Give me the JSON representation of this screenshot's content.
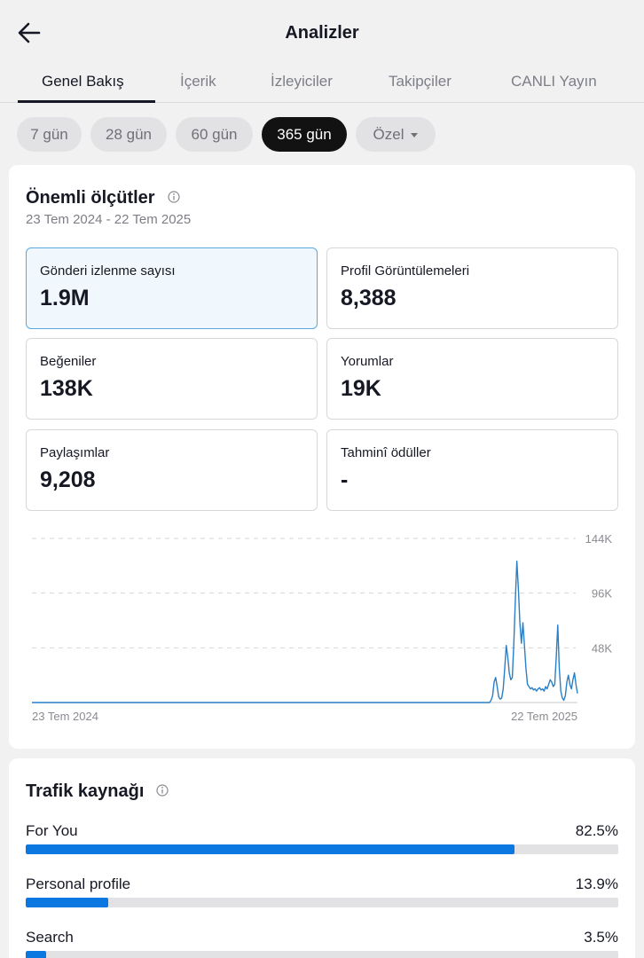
{
  "header": {
    "title": "Analizler",
    "back_icon": "arrow-left-icon"
  },
  "tabs": [
    {
      "label": "Genel Bakış",
      "active": true
    },
    {
      "label": "İçerik",
      "active": false
    },
    {
      "label": "İzleyiciler",
      "active": false
    },
    {
      "label": "Takipçiler",
      "active": false
    },
    {
      "label": "CANLI Yayın",
      "active": false
    }
  ],
  "ranges": [
    {
      "label": "7 gün",
      "active": false
    },
    {
      "label": "28 gün",
      "active": false
    },
    {
      "label": "60 gün",
      "active": false
    },
    {
      "label": "365 gün",
      "active": true
    },
    {
      "label": "Özel",
      "active": false,
      "has_dropdown": true
    }
  ],
  "key_metrics": {
    "title": "Önemli ölçütler",
    "date_range": "23 Tem 2024 - 22 Tem 2025",
    "items": [
      {
        "label": "Gönderi izlenme sayısı",
        "value": "1.9M",
        "selected": true
      },
      {
        "label": "Profil Görüntülemeleri",
        "value": "8,388",
        "selected": false
      },
      {
        "label": "Beğeniler",
        "value": "138K",
        "selected": false
      },
      {
        "label": "Yorumlar",
        "value": "19K",
        "selected": false
      },
      {
        "label": "Paylaşımlar",
        "value": "9,208",
        "selected": false
      },
      {
        "label": "Tahminî ödüller",
        "value": "-",
        "selected": false
      }
    ]
  },
  "chart_data": {
    "type": "line",
    "title": "",
    "xlabel": "",
    "ylabel": "",
    "x_tick_labels": [
      "23 Tem 2024",
      "22 Tem 2025"
    ],
    "y_ticks": [
      {
        "value": 48000,
        "label": "48K"
      },
      {
        "value": 96000,
        "label": "96K"
      },
      {
        "value": 144000,
        "label": "144K"
      }
    ],
    "ylim": [
      0,
      144000
    ],
    "grid": "horizontal-dashed",
    "color": "#2a7fc6",
    "series": [
      {
        "values": [
          0,
          0,
          0,
          0,
          0,
          0,
          0,
          0,
          0,
          0,
          0,
          0,
          0,
          0,
          0,
          0,
          0,
          0,
          0,
          0,
          0,
          0,
          0,
          0,
          0,
          0,
          0,
          0,
          0,
          0,
          0,
          0,
          0,
          0,
          0,
          0,
          0,
          0,
          0,
          0,
          0,
          0,
          0,
          0,
          0,
          0,
          0,
          0,
          0,
          0,
          0,
          0,
          0,
          0,
          0,
          0,
          0,
          0,
          0,
          0,
          0,
          0,
          0,
          0,
          0,
          0,
          0,
          0,
          0,
          0,
          0,
          0,
          0,
          0,
          0,
          0,
          0,
          0,
          0,
          0,
          0,
          0,
          0,
          0,
          0,
          0,
          0,
          0,
          0,
          0,
          0,
          0,
          0,
          0,
          0,
          0,
          0,
          0,
          0,
          0,
          0,
          0,
          0,
          0,
          0,
          0,
          0,
          0,
          0,
          0,
          0,
          0,
          0,
          0,
          0,
          0,
          0,
          0,
          0,
          0,
          0,
          0,
          0,
          0,
          0,
          0,
          0,
          0,
          0,
          0,
          0,
          0,
          0,
          0,
          0,
          0,
          0,
          0,
          0,
          0,
          0,
          0,
          0,
          0,
          0,
          0,
          0,
          0,
          0,
          0,
          0,
          0,
          0,
          0,
          0,
          0,
          0,
          0,
          0,
          0,
          0,
          0,
          0,
          0,
          0,
          0,
          0,
          0,
          0,
          0,
          0,
          0,
          0,
          0,
          0,
          0,
          0,
          0,
          0,
          0,
          0,
          0,
          0,
          0,
          0,
          0,
          0,
          0,
          0,
          0,
          0,
          0,
          0,
          0,
          0,
          0,
          0,
          0,
          0,
          0,
          0,
          0,
          0,
          0,
          0,
          0,
          0,
          0,
          0,
          0,
          0,
          0,
          0,
          0,
          0,
          0,
          0,
          0,
          0,
          0,
          0,
          0,
          0,
          0,
          0,
          0,
          0,
          0,
          0,
          0,
          0,
          0,
          0,
          0,
          0,
          0,
          0,
          0,
          0,
          0,
          0,
          0,
          0,
          0,
          0,
          0,
          0,
          0,
          0,
          0,
          0,
          0,
          0,
          0,
          0,
          0,
          0,
          0,
          0,
          0,
          0,
          0,
          0,
          0,
          0,
          0,
          0,
          0,
          0,
          0,
          0,
          0,
          0,
          0,
          0,
          0,
          0,
          0,
          0,
          0,
          0,
          0,
          0,
          0,
          0,
          0,
          0,
          0,
          0,
          0,
          0,
          0,
          0,
          0,
          0,
          0,
          0,
          0,
          0,
          0,
          0,
          0,
          0,
          2000,
          6000,
          18000,
          22000,
          14000,
          5000,
          3000,
          4000,
          12000,
          30000,
          50000,
          40000,
          26000,
          20000,
          22000,
          52000,
          90000,
          124000,
          100000,
          70000,
          52000,
          70000,
          50000,
          30000,
          16000,
          14000,
          12000,
          13000,
          11000,
          12000,
          10000,
          12000,
          13000,
          11000,
          12000,
          10000,
          14000,
          12000,
          16000,
          20000,
          18000,
          14000,
          16000,
          40000,
          68000,
          30000,
          10000,
          4000,
          2000,
          6000,
          18000,
          24000,
          16000,
          12000,
          20000,
          26000,
          16000,
          8000
        ]
      }
    ]
  },
  "traffic": {
    "title": "Trafik kaynağı",
    "items": [
      {
        "label": "For You",
        "value": "82.5%",
        "percent": 82.5
      },
      {
        "label": "Personal profile",
        "value": "13.9%",
        "percent": 13.9
      },
      {
        "label": "Search",
        "value": "3.5%",
        "percent": 3.5
      }
    ]
  }
}
